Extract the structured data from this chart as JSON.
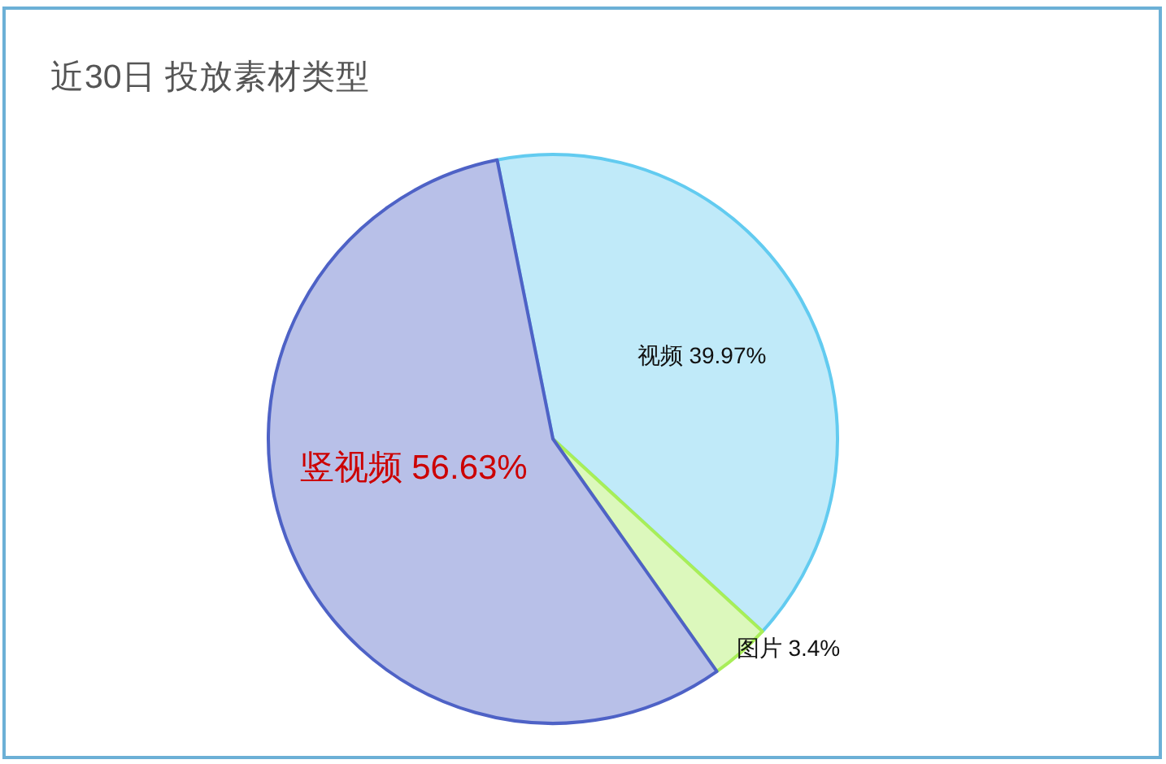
{
  "chart_data": {
    "type": "pie",
    "title": "近30日 投放素材类型",
    "categories": [
      "视频",
      "图片",
      "竖视频"
    ],
    "values": [
      39.97,
      3.4,
      56.63
    ],
    "colors": [
      "#c0eaf9",
      "#dcf8bc",
      "#b8c0e8"
    ],
    "value_labels": [
      "39.97%",
      "3.4%",
      "56.63%"
    ]
  }
}
